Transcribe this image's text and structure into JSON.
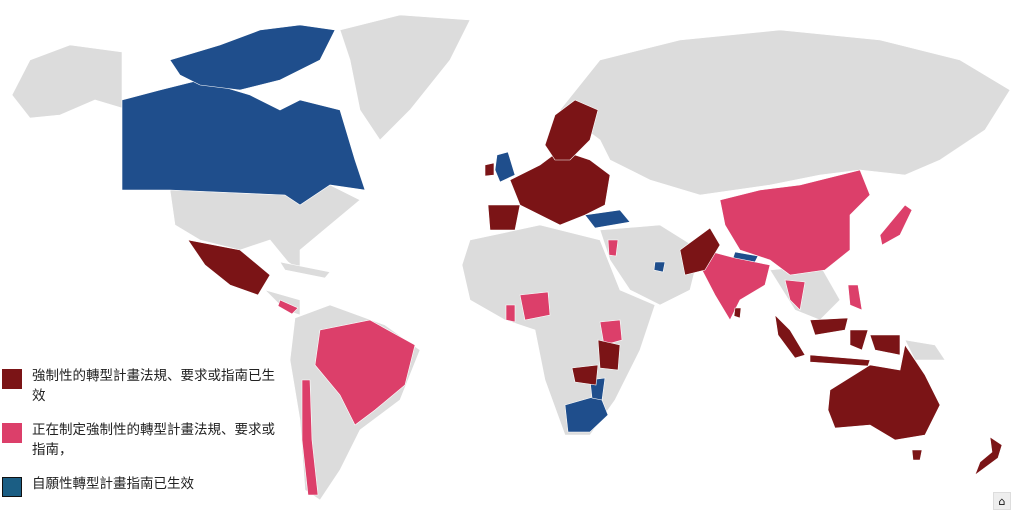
{
  "legend": {
    "items": [
      {
        "label": "強制性的轉型計畫法規、要求或指南已生效",
        "color": "#7b1416"
      },
      {
        "label": "正在制定強制性的轉型計畫法規、要求或指南，",
        "color": "#dc3f6a"
      },
      {
        "label": "自願性轉型計畫指南已生效",
        "color": "#1b5e84"
      }
    ]
  },
  "colors": {
    "no_data": "#dcdcdc",
    "background": "#ffffff"
  },
  "controls": {
    "home_icon": "home-icon"
  }
}
